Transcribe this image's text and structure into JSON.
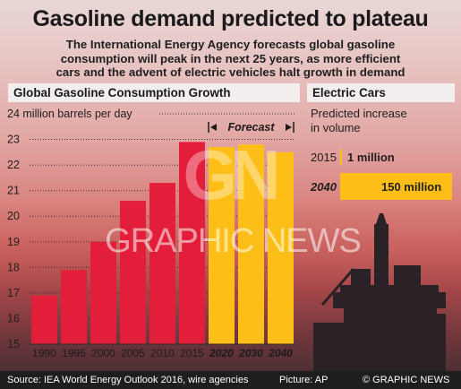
{
  "title": "Gasoline demand predicted to plateau",
  "subtitle_lines": [
    "The International Energy Agency forecasts global gasoline",
    "consumption will peak in the next 25 years, as more efficient",
    "cars and the advent of electric vehicles halt growth in demand"
  ],
  "chart_data": {
    "type": "bar",
    "title": "Global Gasoline Consumption Growth",
    "ylabel": "24 million barrels per day",
    "ylim": [
      15,
      24
    ],
    "yticks": [
      15,
      16,
      17,
      18,
      19,
      20,
      21,
      22,
      23
    ],
    "categories": [
      "1990",
      "1995",
      "2000",
      "2005",
      "2010",
      "2015",
      "2020",
      "2030",
      "2040"
    ],
    "values": [
      16.9,
      17.9,
      19.0,
      20.6,
      21.3,
      22.9,
      22.7,
      22.8,
      22.5
    ],
    "forecast_from_index": 6,
    "forecast_label": "Forecast",
    "colors": {
      "historical": "#e31e3a",
      "forecast": "#fdbf17"
    }
  },
  "electric_cars": {
    "title": "Electric Cars",
    "subtitle_lines": [
      "Predicted increase",
      "in volume"
    ],
    "rows": [
      {
        "year": "2015",
        "value_label": "1 million",
        "value": 1
      },
      {
        "year": "2040",
        "value_label": "150 million",
        "value": 150
      }
    ],
    "bar_color": "#fdbf17"
  },
  "watermark": {
    "logo": "GN",
    "text": "GRAPHIC NEWS"
  },
  "footer": {
    "source": "Source: IEA World Energy Outlook 2016, wire agencies",
    "picture": "Picture: AP",
    "credit": "© GRAPHIC NEWS"
  }
}
